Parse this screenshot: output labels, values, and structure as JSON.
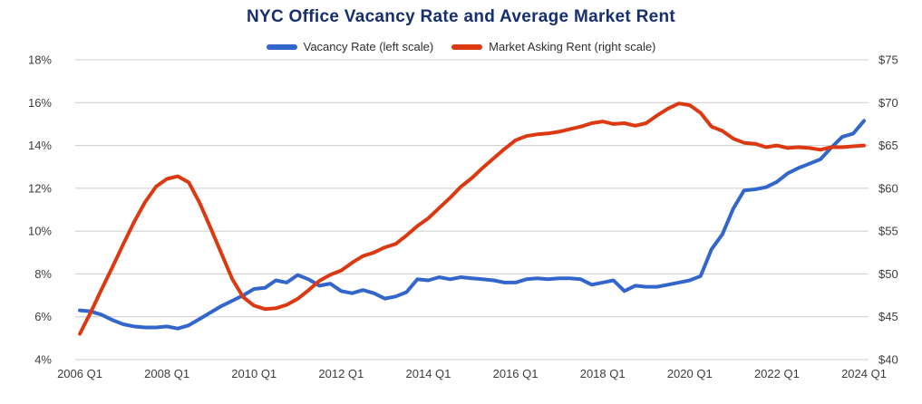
{
  "title": "NYC Office Vacancy Rate and Average Market Rent",
  "colors": {
    "title": "#172f6f",
    "axis_text": "#3d3d3d",
    "gridline": "#cccccc",
    "background": "#ffffff",
    "vacancy_blue": "#3366cc",
    "rent_red": "#dc3912"
  },
  "legend": [
    {
      "label": "Vacancy Rate (left scale)",
      "color": "#3366cc"
    },
    {
      "label": "Market Asking Rent (right scale)",
      "color": "#dc3912"
    }
  ],
  "chart_data": {
    "type": "line",
    "title": "NYC Office Vacancy Rate and Average Market Rent",
    "x_unit": "quarter",
    "x_start": "2006 Q1",
    "x_end": "2024 Q1",
    "grid": "horizontal-only",
    "legend_position": "top-center",
    "left_axis": {
      "min": 4,
      "max": 18,
      "format": "percent",
      "ticks": [
        {
          "value": 18,
          "label": "18%"
        },
        {
          "value": 16,
          "label": "16%"
        },
        {
          "value": 14,
          "label": "14%"
        },
        {
          "value": 12,
          "label": "12%"
        },
        {
          "value": 10,
          "label": "10%"
        },
        {
          "value": 8,
          "label": "8%"
        },
        {
          "value": 6,
          "label": "6%"
        },
        {
          "value": 4,
          "label": "4%"
        }
      ]
    },
    "right_axis": {
      "min": 40,
      "max": 75,
      "format": "dollars",
      "ticks": [
        {
          "value": 75,
          "label": "$75"
        },
        {
          "value": 70,
          "label": "$70"
        },
        {
          "value": 65,
          "label": "$65"
        },
        {
          "value": 60,
          "label": "$60"
        },
        {
          "value": 55,
          "label": "$55"
        },
        {
          "value": 50,
          "label": "$50"
        },
        {
          "value": 45,
          "label": "$45"
        },
        {
          "value": 40,
          "label": "$40"
        }
      ]
    },
    "x_ticks": [
      {
        "index": 0,
        "label": "2006 Q1"
      },
      {
        "index": 8,
        "label": "2008 Q1"
      },
      {
        "index": 16,
        "label": "2010 Q1"
      },
      {
        "index": 24,
        "label": "2012 Q1"
      },
      {
        "index": 32,
        "label": "2014 Q1"
      },
      {
        "index": 40,
        "label": "2016 Q1"
      },
      {
        "index": 48,
        "label": "2018 Q1"
      },
      {
        "index": 56,
        "label": "2020 Q1"
      },
      {
        "index": 64,
        "label": "2022 Q1"
      },
      {
        "index": 72,
        "label": "2024 Q1"
      }
    ],
    "series": [
      {
        "key": "vacancy-rate",
        "name": "Vacancy Rate (left scale)",
        "axis": "left",
        "color": "#3366cc",
        "values": [
          6.3,
          6.25,
          6.1,
          5.85,
          5.65,
          5.55,
          5.5,
          5.5,
          5.55,
          5.45,
          5.6,
          5.9,
          6.2,
          6.5,
          6.75,
          7.0,
          7.3,
          7.35,
          7.7,
          7.6,
          7.95,
          7.75,
          7.45,
          7.55,
          7.2,
          7.1,
          7.25,
          7.1,
          6.85,
          6.95,
          7.15,
          7.75,
          7.7,
          7.85,
          7.75,
          7.85,
          7.8,
          7.75,
          7.7,
          7.6,
          7.6,
          7.75,
          7.8,
          7.75,
          7.8,
          7.8,
          7.75,
          7.5,
          7.6,
          7.7,
          7.2,
          7.45,
          7.4,
          7.4,
          7.5,
          7.6,
          7.7,
          7.9,
          9.15,
          9.85,
          11.05,
          11.9,
          11.95,
          12.05,
          12.3,
          12.7,
          12.95,
          13.15,
          13.35,
          13.9,
          14.4,
          14.55,
          15.15
        ]
      },
      {
        "key": "market-asking-rent",
        "name": "Market Asking Rent (right scale)",
        "axis": "right",
        "color": "#dc3912",
        "values": [
          43.0,
          45.5,
          48.2,
          50.8,
          53.5,
          56.1,
          58.4,
          60.2,
          61.1,
          61.4,
          60.7,
          58.3,
          55.4,
          52.4,
          49.4,
          47.3,
          46.3,
          45.9,
          46.0,
          46.4,
          47.1,
          48.1,
          49.2,
          49.9,
          50.4,
          51.3,
          52.1,
          52.5,
          53.1,
          53.5,
          54.5,
          55.6,
          56.5,
          57.7,
          58.9,
          60.2,
          61.2,
          62.4,
          63.5,
          64.6,
          65.6,
          66.1,
          66.3,
          66.4,
          66.6,
          66.9,
          67.2,
          67.6,
          67.8,
          67.5,
          67.6,
          67.3,
          67.6,
          68.5,
          69.3,
          69.9,
          69.7,
          68.8,
          67.2,
          66.7,
          65.8,
          65.3,
          65.2,
          64.8,
          65.0,
          64.7,
          64.8,
          64.7,
          64.5,
          64.8,
          64.8,
          64.9,
          65.0
        ]
      }
    ]
  }
}
